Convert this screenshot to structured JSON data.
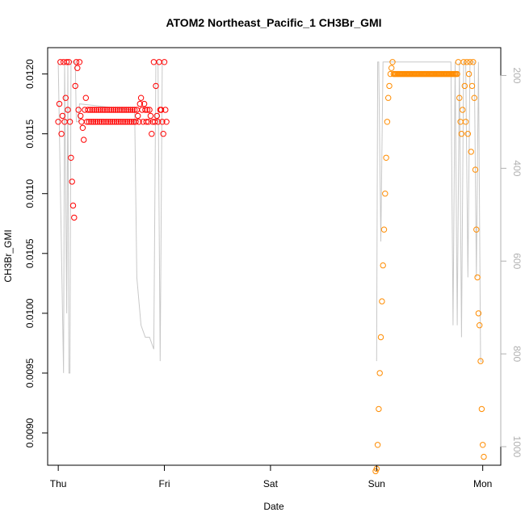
{
  "chart_data": {
    "type": "scatter",
    "title": "ATOM2 Northeast_Pacific_1 CH3Br_GMI",
    "xlabel": "Date",
    "ylabel": "CH3Br_GMI",
    "x_ticks": [
      "Thu",
      "Fri",
      "Sat",
      "Sun",
      "Mon"
    ],
    "x_range": [
      -0.1,
      4.17
    ],
    "ylim": [
      0.00873,
      0.01222
    ],
    "y_ticks": [
      0.009,
      0.0095,
      0.01,
      0.0105,
      0.011,
      0.0115,
      0.012
    ],
    "y_tick_labels": [
      "0.0090",
      "0.0095",
      "0.0100",
      "0.0105",
      "0.0110",
      "0.0115",
      "0.0120"
    ],
    "y2_range": [
      1040,
      140
    ],
    "y2_ticks": [
      200,
      400,
      600,
      800,
      1000
    ],
    "y2_tick_labels": [
      "200",
      "400",
      "600",
      "800",
      "1000"
    ],
    "grid": false,
    "series": [
      {
        "color": "#ff0000",
        "marker": "open-circle",
        "x": [
          0.0,
          0.01,
          0.02,
          0.03,
          0.04,
          0.05,
          0.06,
          0.07,
          0.08,
          0.09,
          0.1,
          0.11,
          0.12,
          0.13,
          0.14,
          0.15,
          0.16,
          0.17,
          0.18,
          0.19,
          0.2,
          0.21,
          0.22,
          0.23,
          0.24,
          0.25,
          0.26,
          0.27,
          0.28,
          0.29,
          0.3,
          0.31,
          0.32,
          0.33,
          0.34,
          0.35,
          0.36,
          0.37,
          0.38,
          0.39,
          0.4,
          0.41,
          0.42,
          0.43,
          0.44,
          0.45,
          0.46,
          0.47,
          0.48,
          0.49,
          0.5,
          0.51,
          0.52,
          0.53,
          0.54,
          0.55,
          0.56,
          0.57,
          0.58,
          0.59,
          0.6,
          0.61,
          0.62,
          0.63,
          0.64,
          0.65,
          0.66,
          0.67,
          0.68,
          0.69,
          0.7,
          0.71,
          0.72,
          0.73,
          0.74,
          0.75,
          0.76,
          0.77,
          0.78,
          0.79,
          0.8,
          0.81,
          0.82,
          0.83,
          0.84,
          0.85,
          0.86,
          0.87,
          0.88,
          0.89,
          0.9,
          0.91,
          0.92,
          0.93,
          0.94,
          0.95,
          0.96,
          0.97,
          0.98,
          0.99,
          1.0,
          1.01,
          1.02
        ],
        "y": [
          0.0116,
          0.01175,
          0.0121,
          0.0115,
          0.01165,
          0.0121,
          0.0116,
          0.0118,
          0.0121,
          0.0117,
          0.0121,
          0.0116,
          0.0113,
          0.0111,
          0.0109,
          0.0108,
          0.0119,
          0.0121,
          0.01205,
          0.0117,
          0.0121,
          0.01165,
          0.0116,
          0.01155,
          0.01145,
          0.0117,
          0.0118,
          0.0116,
          0.0117,
          0.0116,
          0.0117,
          0.0116,
          0.0117,
          0.0116,
          0.0117,
          0.0116,
          0.0117,
          0.0116,
          0.0117,
          0.0116,
          0.0117,
          0.0116,
          0.0117,
          0.0116,
          0.0117,
          0.0116,
          0.0117,
          0.0116,
          0.0117,
          0.0116,
          0.0117,
          0.0116,
          0.0117,
          0.0116,
          0.0117,
          0.0116,
          0.0117,
          0.0116,
          0.0117,
          0.0116,
          0.0117,
          0.0116,
          0.0117,
          0.0116,
          0.0117,
          0.0116,
          0.0117,
          0.0116,
          0.0117,
          0.0116,
          0.0117,
          0.0116,
          0.0117,
          0.0116,
          0.0117,
          0.01165,
          0.0116,
          0.01175,
          0.0118,
          0.0117,
          0.0116,
          0.01175,
          0.0117,
          0.0116,
          0.0117,
          0.0116,
          0.0117,
          0.01165,
          0.0115,
          0.0116,
          0.0121,
          0.0116,
          0.0119,
          0.01165,
          0.0116,
          0.0121,
          0.0117,
          0.0117,
          0.0116,
          0.0115,
          0.0121,
          0.0117,
          0.0116
        ]
      },
      {
        "color": "#ff8c00",
        "marker": "open-circle",
        "x": [
          2.99,
          3.0,
          3.01,
          3.02,
          3.03,
          3.04,
          3.05,
          3.06,
          3.07,
          3.08,
          3.09,
          3.1,
          3.11,
          3.12,
          3.13,
          3.14,
          3.15,
          3.16,
          3.17,
          3.18,
          3.19,
          3.2,
          3.21,
          3.22,
          3.23,
          3.24,
          3.25,
          3.26,
          3.27,
          3.28,
          3.29,
          3.3,
          3.31,
          3.32,
          3.33,
          3.34,
          3.35,
          3.36,
          3.37,
          3.38,
          3.39,
          3.4,
          3.41,
          3.42,
          3.43,
          3.44,
          3.45,
          3.46,
          3.47,
          3.48,
          3.49,
          3.5,
          3.51,
          3.52,
          3.53,
          3.54,
          3.55,
          3.56,
          3.57,
          3.58,
          3.59,
          3.6,
          3.61,
          3.62,
          3.63,
          3.64,
          3.65,
          3.66,
          3.67,
          3.68,
          3.69,
          3.7,
          3.71,
          3.72,
          3.73,
          3.74,
          3.75,
          3.76,
          3.77,
          3.78,
          3.79,
          3.8,
          3.81,
          3.82,
          3.83,
          3.84,
          3.85,
          3.86,
          3.87,
          3.88,
          3.89,
          3.9,
          3.91,
          3.92,
          3.93,
          3.94,
          3.95,
          3.96,
          3.97,
          3.98,
          3.99,
          4.0,
          4.01
        ],
        "y": [
          0.00868,
          0.0087,
          0.0089,
          0.0092,
          0.0095,
          0.0098,
          0.0101,
          0.0104,
          0.0107,
          0.011,
          0.0113,
          0.0116,
          0.0118,
          0.0119,
          0.012,
          0.01205,
          0.0121,
          0.012,
          0.012,
          0.012,
          0.012,
          0.012,
          0.012,
          0.012,
          0.012,
          0.012,
          0.012,
          0.012,
          0.012,
          0.012,
          0.012,
          0.012,
          0.012,
          0.012,
          0.012,
          0.012,
          0.012,
          0.012,
          0.012,
          0.012,
          0.012,
          0.012,
          0.012,
          0.012,
          0.012,
          0.012,
          0.012,
          0.012,
          0.012,
          0.012,
          0.012,
          0.012,
          0.012,
          0.012,
          0.012,
          0.012,
          0.012,
          0.012,
          0.012,
          0.012,
          0.012,
          0.012,
          0.012,
          0.012,
          0.012,
          0.012,
          0.012,
          0.012,
          0.012,
          0.012,
          0.012,
          0.012,
          0.012,
          0.012,
          0.012,
          0.012,
          0.012,
          0.012,
          0.0121,
          0.0118,
          0.0116,
          0.0115,
          0.0117,
          0.0121,
          0.0119,
          0.0116,
          0.0121,
          0.0115,
          0.012,
          0.0121,
          0.01135,
          0.0119,
          0.0121,
          0.0118,
          0.0112,
          0.0107,
          0.0103,
          0.01,
          0.0099,
          0.0096,
          0.0092,
          0.0089,
          0.0088
        ]
      }
    ],
    "reference_lines": [
      {
        "color": "#c8c8c8",
        "x": [
          0.0,
          0.05,
          0.06,
          0.08,
          0.09,
          0.1,
          0.11,
          0.12,
          0.13,
          0.14,
          0.15,
          0.16,
          0.17,
          0.18,
          0.19,
          0.2,
          0.7,
          0.72,
          0.74,
          0.78,
          0.82,
          0.86,
          0.9,
          0.92,
          0.94,
          0.96,
          0.98,
          1.0
        ],
        "y": [
          0.0121,
          0.0095,
          0.0121,
          0.01,
          0.0121,
          0.0095,
          0.0095,
          0.0121,
          0.0121,
          0.0121,
          0.0121,
          0.0121,
          0.0116,
          0.0116,
          0.0116,
          0.01175,
          0.0117,
          0.0117,
          0.0103,
          0.0099,
          0.0098,
          0.0098,
          0.0097,
          0.0121,
          0.0121,
          0.0096,
          0.0121,
          0.0121
        ]
      },
      {
        "color": "#c8c8c8",
        "x": [
          3.0,
          3.01,
          3.02,
          3.04,
          3.06,
          3.08,
          3.7,
          3.72,
          3.74,
          3.76,
          3.78,
          3.8,
          3.82,
          3.84,
          3.86,
          3.88,
          3.9,
          3.92,
          3.94,
          3.96,
          3.98,
          4.0
        ],
        "y": [
          0.0096,
          0.0121,
          0.0121,
          0.0106,
          0.0121,
          0.0121,
          0.0121,
          0.0099,
          0.0121,
          0.0099,
          0.0121,
          0.0098,
          0.0121,
          0.0121,
          0.0103,
          0.0121,
          0.0121,
          0.0121,
          0.0103,
          0.0121,
          0.0096,
          0.0096
        ]
      }
    ]
  }
}
